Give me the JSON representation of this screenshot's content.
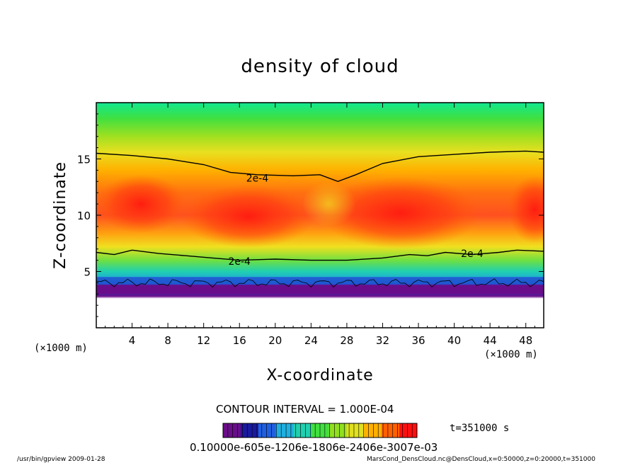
{
  "chart_data": {
    "type": "heatmap",
    "title": "density of cloud",
    "xlabel": "X-coordinate",
    "ylabel": "Z-coordinate",
    "x_unit": "(×1000 m)",
    "y_unit": "(×1000 m)",
    "xlim": [
      0,
      50
    ],
    "ylim": [
      0,
      20
    ],
    "x_ticks": [
      4,
      8,
      12,
      16,
      20,
      24,
      28,
      32,
      36,
      40,
      44,
      48
    ],
    "y_ticks": [
      5,
      10,
      15
    ],
    "contour_interval_text": "CONTOUR INTERVAL = 1.000E-04",
    "contour_labels": [
      "2e-4",
      "2e-4",
      "2e-4"
    ],
    "time_label": "t=351000 s",
    "colorbar_labels_text": "0.10000e-605e-1206e-1806e-2406e-3007e-03",
    "colorbar_colors": [
      "#6a0d8a",
      "#1a1a9e",
      "#2060e0",
      "#20b0e0",
      "#20d0b0",
      "#40e040",
      "#90e020",
      "#e0e020",
      "#ffb000",
      "#ff6000",
      "#ff1010"
    ],
    "upper_contour": [
      [
        0,
        15.5
      ],
      [
        4,
        15.3
      ],
      [
        8,
        15.0
      ],
      [
        12,
        14.5
      ],
      [
        15,
        13.8
      ],
      [
        18,
        13.6
      ],
      [
        22,
        13.5
      ],
      [
        25,
        13.6
      ],
      [
        27,
        13.0
      ],
      [
        29,
        13.6
      ],
      [
        32,
        14.6
      ],
      [
        36,
        15.2
      ],
      [
        40,
        15.4
      ],
      [
        44,
        15.6
      ],
      [
        48,
        15.7
      ],
      [
        50,
        15.6
      ]
    ],
    "lower_contour": [
      [
        0,
        6.7
      ],
      [
        2,
        6.5
      ],
      [
        4,
        6.9
      ],
      [
        7,
        6.6
      ],
      [
        10,
        6.4
      ],
      [
        13,
        6.2
      ],
      [
        16,
        6.0
      ],
      [
        20,
        6.1
      ],
      [
        24,
        6.0
      ],
      [
        28,
        6.0
      ],
      [
        32,
        6.2
      ],
      [
        35,
        6.5
      ],
      [
        37,
        6.4
      ],
      [
        39,
        6.7
      ],
      [
        42,
        6.5
      ],
      [
        45,
        6.7
      ],
      [
        47,
        6.9
      ],
      [
        50,
        6.8
      ]
    ],
    "cloud_base": 3.0
  },
  "footer": {
    "left": "/usr/bin/gpview   2009-01-28",
    "right": "MarsCond_DensCloud.nc@DensCloud,x=0:50000,z=0:20000,t=351000"
  }
}
